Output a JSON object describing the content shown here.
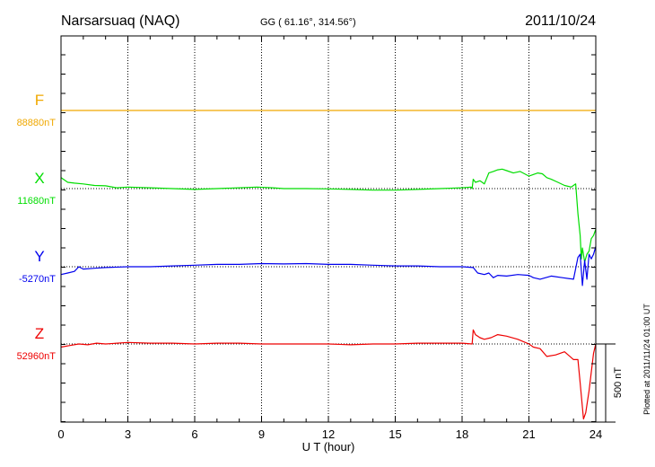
{
  "header": {
    "station": "Narsarsuaq (NAQ)",
    "coords": "GG ( 61.16°, 314.56°)",
    "date": "2011/10/24"
  },
  "footer_note": "Plotted at 2011/11/24 01:00 UT",
  "scale_label": "500 nT",
  "colors": {
    "F": "#f0a800",
    "X": "#00dd00",
    "Y": "#0000ee",
    "Z": "#ee0000",
    "grid": "#000000"
  },
  "chart_data": {
    "type": "line",
    "xlabel": "U T (hour)",
    "xlim": [
      0,
      24
    ],
    "xticks": [
      "0",
      "3",
      "6",
      "9",
      "12",
      "15",
      "18",
      "21",
      "24"
    ],
    "unit": "nT",
    "scale_nT": 500,
    "series": [
      {
        "name": "F",
        "baseline_label": "88880nT",
        "x": [
          0,
          24
        ],
        "y": [
          0,
          0
        ]
      },
      {
        "name": "X",
        "baseline_label": "11680nT",
        "x": [
          0,
          0.3,
          0.6,
          1,
          1.5,
          2,
          2.5,
          3,
          4,
          5,
          6,
          7,
          8,
          8.8,
          9.5,
          10,
          11,
          12,
          13,
          14,
          15,
          16,
          17,
          18,
          18.4,
          18.45,
          18.5,
          18.6,
          18.8,
          19,
          19.2,
          19.4,
          19.6,
          19.8,
          20,
          20.3,
          20.6,
          21,
          21.2,
          21.4,
          21.6,
          21.8,
          22,
          22.3,
          22.6,
          22.9,
          23.1,
          23.2,
          23.3,
          23.35,
          23.4,
          23.5,
          23.6,
          23.7,
          23.8,
          23.9,
          24
        ],
        "y": [
          70,
          40,
          35,
          30,
          20,
          18,
          5,
          10,
          5,
          0,
          -5,
          0,
          5,
          10,
          5,
          0,
          0,
          -2,
          -5,
          -10,
          -10,
          -5,
          0,
          5,
          10,
          0,
          60,
          40,
          50,
          30,
          100,
          110,
          120,
          125,
          115,
          100,
          110,
          80,
          90,
          100,
          95,
          70,
          60,
          40,
          20,
          10,
          30,
          -160,
          -300,
          -450,
          -380,
          -470,
          -420,
          -400,
          -320,
          -300,
          -260
        ]
      },
      {
        "name": "Y",
        "baseline_label": "-5270nT",
        "x": [
          0,
          0.3,
          0.6,
          0.8,
          1,
          1.5,
          2,
          3,
          4,
          5,
          6,
          7,
          8,
          9,
          10,
          11,
          12,
          13,
          14,
          15,
          16,
          17,
          18,
          18.5,
          18.7,
          19,
          19.2,
          19.4,
          19.6,
          20,
          20.5,
          21,
          21.2,
          21.5,
          22,
          22.5,
          23,
          23.2,
          23.3,
          23.4,
          23.5,
          23.6,
          23.7,
          23.8,
          23.9,
          24
        ],
        "y": [
          -50,
          -40,
          -30,
          0,
          -15,
          -10,
          -5,
          0,
          0,
          5,
          10,
          15,
          15,
          20,
          18,
          20,
          15,
          15,
          10,
          5,
          5,
          0,
          0,
          -5,
          -40,
          -50,
          -40,
          -70,
          -55,
          -60,
          -50,
          -55,
          -70,
          -80,
          -60,
          -70,
          -80,
          60,
          80,
          -120,
          40,
          -80,
          80,
          50,
          80,
          130
        ]
      },
      {
        "name": "Z",
        "baseline_label": "52960nT",
        "x": [
          0,
          0.4,
          0.8,
          1.2,
          1.6,
          2,
          3,
          4,
          5,
          6,
          7,
          8,
          9,
          10,
          11,
          12,
          13,
          14,
          15,
          16,
          17,
          18,
          18.45,
          18.5,
          18.6,
          18.8,
          19,
          19.3,
          19.6,
          20,
          20.5,
          21,
          21.2,
          21.5,
          21.8,
          22.2,
          22.6,
          23,
          23.2,
          23.3,
          23.45,
          23.55,
          23.7,
          23.9,
          24
        ],
        "y": [
          -20,
          -10,
          0,
          -5,
          5,
          0,
          10,
          5,
          5,
          0,
          5,
          5,
          0,
          0,
          0,
          0,
          -5,
          0,
          0,
          5,
          5,
          5,
          0,
          90,
          60,
          40,
          30,
          40,
          60,
          50,
          30,
          0,
          -20,
          -30,
          -80,
          -70,
          -50,
          -100,
          -100,
          -250,
          -480,
          -440,
          -300,
          -60,
          0
        ]
      }
    ]
  }
}
